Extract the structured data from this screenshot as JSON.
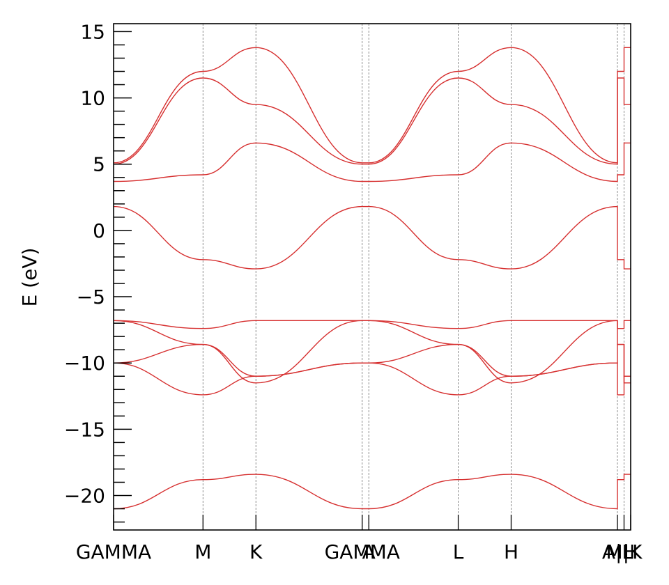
{
  "chart_data": {
    "type": "line",
    "title": "",
    "xlabel": "",
    "ylabel": "E (eV)",
    "ylim": [
      -22.6,
      15.6
    ],
    "grid": false,
    "legend": "none",
    "line_color": "#d62f2f",
    "kpath": {
      "segments": [
        {
          "from": "GAMMA",
          "to": "M",
          "x0": 0.0,
          "x1": 1.713
        },
        {
          "from": "M",
          "to": "K",
          "x0": 1.713,
          "x1": 2.727
        },
        {
          "from": "K",
          "to": "GAMMA",
          "x0": 2.727,
          "x1": 4.763
        },
        {
          "from": "GAMMA",
          "to": "A",
          "x0": 4.763,
          "x1": 4.89
        },
        {
          "from": "A",
          "to": "L",
          "x0": 4.89,
          "x1": 6.603
        },
        {
          "from": "L",
          "to": "H",
          "x0": 6.603,
          "x1": 7.617
        },
        {
          "from": "H",
          "to": "A",
          "x0": 7.617,
          "x1": 9.653
        },
        {
          "from": "L",
          "to": "M",
          "x0": 9.653,
          "x1": 9.78
        },
        {
          "from": "K",
          "to": "H",
          "x0": 9.78,
          "x1": 9.907
        }
      ],
      "tick_positions": [
        0.0,
        1.713,
        2.727,
        4.763,
        4.89,
        6.603,
        7.617,
        9.653,
        9.78,
        9.907
      ],
      "tick_labels": [
        "GAMMA",
        "M",
        "K",
        "GAMMA",
        "A",
        "L",
        "H",
        "A|L",
        "M|K",
        "H"
      ]
    },
    "yticks": [
      -20,
      -15,
      -10,
      -5,
      0,
      5,
      10,
      15
    ],
    "ytick_labels": [
      "−20",
      "−15",
      "−10",
      "−5",
      "0",
      "5",
      "10",
      "15"
    ],
    "bands_at_points": {
      "points": [
        "GAMMA",
        "M",
        "K",
        "A",
        "L",
        "H"
      ],
      "band1": [
        -21.0,
        -18.8,
        -18.4,
        -21.0,
        -18.8,
        -18.4
      ],
      "band2": [
        -10.0,
        -12.4,
        -11.0,
        -10.0,
        -12.4,
        -11.0
      ],
      "band3": [
        -10.0,
        -8.6,
        -11.0,
        -10.0,
        -8.6,
        -11.0
      ],
      "band4": [
        -6.8,
        -8.6,
        -11.5,
        -6.8,
        -8.6,
        -11.5
      ],
      "band5": [
        -6.8,
        -7.4,
        -6.8,
        -6.8,
        -7.4,
        -6.8
      ],
      "band6": [
        1.8,
        -2.2,
        -2.9,
        1.8,
        -2.2,
        -2.9
      ],
      "band7": [
        3.7,
        4.2,
        6.6,
        3.7,
        4.2,
        6.6
      ],
      "band8": [
        5.0,
        11.5,
        9.5,
        5.0,
        11.5,
        9.5
      ],
      "band9": [
        5.1,
        12.0,
        13.8,
        5.1,
        12.0,
        13.8
      ]
    }
  }
}
